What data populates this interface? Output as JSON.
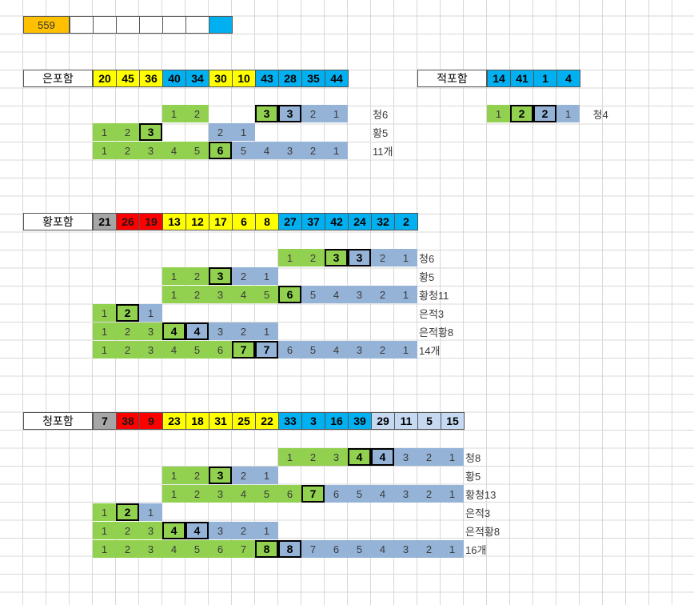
{
  "colors": {
    "orange": "#ffc000",
    "yellow": "#ffff00",
    "blue": "#00b0f0",
    "red": "#ff0000",
    "gray": "#a6a6a6",
    "green": "#92d050",
    "steel": "#95b3d7",
    "pale": "#c5d9f1",
    "white": "#ffffff"
  },
  "top_counter": "559",
  "blocks": [
    {
      "title": "은포함",
      "numbers": [
        {
          "v": "20",
          "c": "yellow"
        },
        {
          "v": "45",
          "c": "yellow"
        },
        {
          "v": "36",
          "c": "yellow"
        },
        {
          "v": "40",
          "c": "blue"
        },
        {
          "v": "34",
          "c": "blue"
        },
        {
          "v": "30",
          "c": "yellow"
        },
        {
          "v": "10",
          "c": "yellow"
        },
        {
          "v": "43",
          "c": "blue"
        },
        {
          "v": "28",
          "c": "blue"
        },
        {
          "v": "35",
          "c": "blue"
        },
        {
          "v": "44",
          "c": "blue"
        }
      ],
      "rows": [
        {
          "start": 6,
          "cells": [
            {
              "v": "1",
              "c": "green"
            },
            {
              "v": "2",
              "c": "green"
            },
            {
              "v": "",
              "c": ""
            },
            {
              "v": "",
              "c": ""
            },
            {
              "v": "3",
              "c": "green",
              "box": true
            },
            {
              "v": "3",
              "c": "steel",
              "box": true
            },
            {
              "v": "2",
              "c": "steel"
            },
            {
              "v": "1",
              "c": "steel"
            }
          ],
          "label": "청6"
        },
        {
          "start": 3,
          "cells": [
            {
              "v": "1",
              "c": "green"
            },
            {
              "v": "2",
              "c": "green"
            },
            {
              "v": "3",
              "c": "green",
              "box": true
            },
            {
              "v": "",
              "c": ""
            },
            {
              "v": "",
              "c": ""
            },
            {
              "v": "2",
              "c": "steel"
            },
            {
              "v": "1",
              "c": "steel"
            }
          ],
          "label": "황5"
        },
        {
          "start": 3,
          "cells": [
            {
              "v": "1",
              "c": "green"
            },
            {
              "v": "2",
              "c": "green"
            },
            {
              "v": "3",
              "c": "green"
            },
            {
              "v": "4",
              "c": "green"
            },
            {
              "v": "5",
              "c": "green"
            },
            {
              "v": "6",
              "c": "green",
              "box": true
            },
            {
              "v": "5",
              "c": "steel"
            },
            {
              "v": "4",
              "c": "steel"
            },
            {
              "v": "3",
              "c": "steel"
            },
            {
              "v": "2",
              "c": "steel"
            },
            {
              "v": "1",
              "c": "steel"
            }
          ],
          "label": "11개"
        }
      ]
    },
    {
      "title": "적포함",
      "numbers": [
        {
          "v": "14",
          "c": "blue"
        },
        {
          "v": "41",
          "c": "blue"
        },
        {
          "v": "1",
          "c": "blue"
        },
        {
          "v": "4",
          "c": "blue"
        }
      ],
      "rows": [
        {
          "start": 20,
          "cells": [
            {
              "v": "1",
              "c": "green"
            },
            {
              "v": "2",
              "c": "green",
              "box": true
            },
            {
              "v": "2",
              "c": "steel",
              "box": true
            },
            {
              "v": "1",
              "c": "steel"
            }
          ],
          "label": "청4"
        }
      ]
    },
    {
      "title": "황포함",
      "numbers": [
        {
          "v": "21",
          "c": "gray"
        },
        {
          "v": "26",
          "c": "red"
        },
        {
          "v": "19",
          "c": "red"
        },
        {
          "v": "13",
          "c": "yellow"
        },
        {
          "v": "12",
          "c": "yellow"
        },
        {
          "v": "17",
          "c": "yellow"
        },
        {
          "v": "6",
          "c": "yellow"
        },
        {
          "v": "8",
          "c": "yellow"
        },
        {
          "v": "27",
          "c": "blue"
        },
        {
          "v": "37",
          "c": "blue"
        },
        {
          "v": "42",
          "c": "blue"
        },
        {
          "v": "24",
          "c": "blue"
        },
        {
          "v": "32",
          "c": "blue"
        },
        {
          "v": "2",
          "c": "blue"
        }
      ],
      "rows": [
        {
          "start": 11,
          "cells": [
            {
              "v": "1",
              "c": "green"
            },
            {
              "v": "2",
              "c": "green"
            },
            {
              "v": "3",
              "c": "green",
              "box": true
            },
            {
              "v": "3",
              "c": "steel",
              "box": true
            },
            {
              "v": "2",
              "c": "steel"
            },
            {
              "v": "1",
              "c": "steel"
            }
          ],
          "label": "청6"
        },
        {
          "start": 6,
          "cells": [
            {
              "v": "1",
              "c": "green"
            },
            {
              "v": "2",
              "c": "green"
            },
            {
              "v": "3",
              "c": "green",
              "box": true
            },
            {
              "v": "2",
              "c": "steel"
            },
            {
              "v": "1",
              "c": "steel"
            }
          ],
          "label": "황5"
        },
        {
          "start": 6,
          "cells": [
            {
              "v": "1",
              "c": "green"
            },
            {
              "v": "2",
              "c": "green"
            },
            {
              "v": "3",
              "c": "green"
            },
            {
              "v": "4",
              "c": "green"
            },
            {
              "v": "5",
              "c": "green"
            },
            {
              "v": "6",
              "c": "green",
              "box": true
            },
            {
              "v": "5",
              "c": "steel"
            },
            {
              "v": "4",
              "c": "steel"
            },
            {
              "v": "3",
              "c": "steel"
            },
            {
              "v": "2",
              "c": "steel"
            },
            {
              "v": "1",
              "c": "steel"
            }
          ],
          "label": "황청11"
        },
        {
          "start": 3,
          "cells": [
            {
              "v": "1",
              "c": "green"
            },
            {
              "v": "2",
              "c": "green",
              "box": true
            },
            {
              "v": "1",
              "c": "steel"
            }
          ],
          "label": "은적3"
        },
        {
          "start": 3,
          "cells": [
            {
              "v": "1",
              "c": "green"
            },
            {
              "v": "2",
              "c": "green"
            },
            {
              "v": "3",
              "c": "green"
            },
            {
              "v": "4",
              "c": "green",
              "box": true
            },
            {
              "v": "4",
              "c": "steel",
              "box": true
            },
            {
              "v": "3",
              "c": "steel"
            },
            {
              "v": "2",
              "c": "steel"
            },
            {
              "v": "1",
              "c": "steel"
            }
          ],
          "label": "은적황8"
        },
        {
          "start": 3,
          "cells": [
            {
              "v": "1",
              "c": "green"
            },
            {
              "v": "2",
              "c": "green"
            },
            {
              "v": "3",
              "c": "green"
            },
            {
              "v": "4",
              "c": "green"
            },
            {
              "v": "5",
              "c": "green"
            },
            {
              "v": "6",
              "c": "green"
            },
            {
              "v": "7",
              "c": "green",
              "box": true
            },
            {
              "v": "7",
              "c": "steel",
              "box": true
            },
            {
              "v": "6",
              "c": "steel"
            },
            {
              "v": "5",
              "c": "steel"
            },
            {
              "v": "4",
              "c": "steel"
            },
            {
              "v": "3",
              "c": "steel"
            },
            {
              "v": "2",
              "c": "steel"
            },
            {
              "v": "1",
              "c": "steel"
            }
          ],
          "label": "14개"
        }
      ]
    },
    {
      "title": "청포함",
      "numbers": [
        {
          "v": "7",
          "c": "gray"
        },
        {
          "v": "38",
          "c": "red"
        },
        {
          "v": "9",
          "c": "red"
        },
        {
          "v": "23",
          "c": "yellow"
        },
        {
          "v": "18",
          "c": "yellow"
        },
        {
          "v": "31",
          "c": "yellow"
        },
        {
          "v": "25",
          "c": "yellow"
        },
        {
          "v": "22",
          "c": "yellow"
        },
        {
          "v": "33",
          "c": "blue"
        },
        {
          "v": "3",
          "c": "blue"
        },
        {
          "v": "16",
          "c": "blue"
        },
        {
          "v": "39",
          "c": "blue"
        },
        {
          "v": "29",
          "c": "pale"
        },
        {
          "v": "11",
          "c": "pale"
        },
        {
          "v": "5",
          "c": "pale"
        },
        {
          "v": "15",
          "c": "pale"
        }
      ],
      "rows": [
        {
          "start": 11,
          "cells": [
            {
              "v": "1",
              "c": "green"
            },
            {
              "v": "2",
              "c": "green"
            },
            {
              "v": "3",
              "c": "green"
            },
            {
              "v": "4",
              "c": "green",
              "box": true
            },
            {
              "v": "4",
              "c": "steel",
              "box": true
            },
            {
              "v": "3",
              "c": "steel"
            },
            {
              "v": "2",
              "c": "steel"
            },
            {
              "v": "1",
              "c": "steel"
            }
          ],
          "label": "청8"
        },
        {
          "start": 6,
          "cells": [
            {
              "v": "1",
              "c": "green"
            },
            {
              "v": "2",
              "c": "green"
            },
            {
              "v": "3",
              "c": "green",
              "box": true
            },
            {
              "v": "2",
              "c": "steel"
            },
            {
              "v": "1",
              "c": "steel"
            }
          ],
          "label": "황5"
        },
        {
          "start": 6,
          "cells": [
            {
              "v": "1",
              "c": "green"
            },
            {
              "v": "2",
              "c": "green"
            },
            {
              "v": "3",
              "c": "green"
            },
            {
              "v": "4",
              "c": "green"
            },
            {
              "v": "5",
              "c": "green"
            },
            {
              "v": "6",
              "c": "green"
            },
            {
              "v": "7",
              "c": "green",
              "box": true
            },
            {
              "v": "6",
              "c": "steel"
            },
            {
              "v": "5",
              "c": "steel"
            },
            {
              "v": "4",
              "c": "steel"
            },
            {
              "v": "3",
              "c": "steel"
            },
            {
              "v": "2",
              "c": "steel"
            },
            {
              "v": "1",
              "c": "steel"
            }
          ],
          "label": "황청13"
        },
        {
          "start": 3,
          "cells": [
            {
              "v": "1",
              "c": "green"
            },
            {
              "v": "2",
              "c": "green",
              "box": true
            },
            {
              "v": "1",
              "c": "steel"
            }
          ],
          "label": "은적3"
        },
        {
          "start": 3,
          "cells": [
            {
              "v": "1",
              "c": "green"
            },
            {
              "v": "2",
              "c": "green"
            },
            {
              "v": "3",
              "c": "green"
            },
            {
              "v": "4",
              "c": "green",
              "box": true
            },
            {
              "v": "4",
              "c": "steel",
              "box": true
            },
            {
              "v": "3",
              "c": "steel"
            },
            {
              "v": "2",
              "c": "steel"
            },
            {
              "v": "1",
              "c": "steel"
            }
          ],
          "label": "은적황8"
        },
        {
          "start": 3,
          "cells": [
            {
              "v": "1",
              "c": "green"
            },
            {
              "v": "2",
              "c": "green"
            },
            {
              "v": "3",
              "c": "green"
            },
            {
              "v": "4",
              "c": "green"
            },
            {
              "v": "5",
              "c": "green"
            },
            {
              "v": "6",
              "c": "green"
            },
            {
              "v": "7",
              "c": "green"
            },
            {
              "v": "8",
              "c": "green",
              "box": true
            },
            {
              "v": "8",
              "c": "steel",
              "box": true
            },
            {
              "v": "7",
              "c": "steel"
            },
            {
              "v": "6",
              "c": "steel"
            },
            {
              "v": "5",
              "c": "steel"
            },
            {
              "v": "4",
              "c": "steel"
            },
            {
              "v": "3",
              "c": "steel"
            },
            {
              "v": "2",
              "c": "steel"
            },
            {
              "v": "1",
              "c": "steel"
            }
          ],
          "label": "16개"
        }
      ]
    }
  ]
}
